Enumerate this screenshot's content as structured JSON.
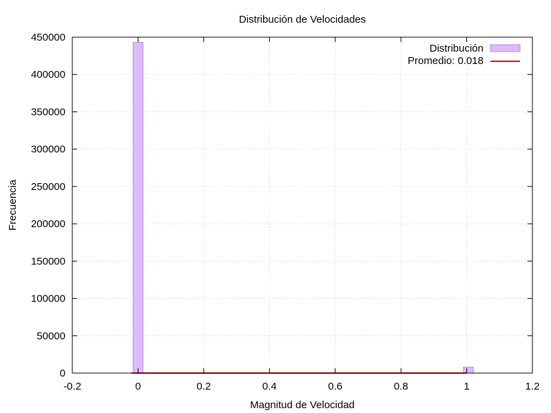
{
  "chart_data": {
    "type": "bar",
    "title": "Distribución de Velocidades",
    "xlabel": "Magnitud de Velocidad",
    "ylabel": "Frecuencia",
    "xlim": [
      -0.2,
      1.2
    ],
    "ylim": [
      0,
      450000
    ],
    "xticks": [
      "-0.2",
      "0",
      "0.2",
      "0.4",
      "0.6",
      "0.8",
      "1",
      "1.2"
    ],
    "yticks": [
      "0",
      "50000",
      "100000",
      "150000",
      "200000",
      "250000",
      "300000",
      "350000",
      "400000",
      "450000"
    ],
    "grid": true,
    "legend_position": "top-right",
    "series": [
      {
        "name": "Distribución",
        "kind": "histogram",
        "color": "#dcbcfc",
        "edge_color": "#b48ae6",
        "bins": [
          {
            "x0": -0.015,
            "x1": 0.015,
            "value": 443000
          },
          {
            "x0": 0.99,
            "x1": 1.02,
            "value": 8000
          }
        ]
      },
      {
        "name": "Promedio: 0.018",
        "kind": "line",
        "color": "#ff0000",
        "x": [
          -0.02,
          1.0
        ],
        "y": [
          0,
          0
        ]
      }
    ]
  }
}
